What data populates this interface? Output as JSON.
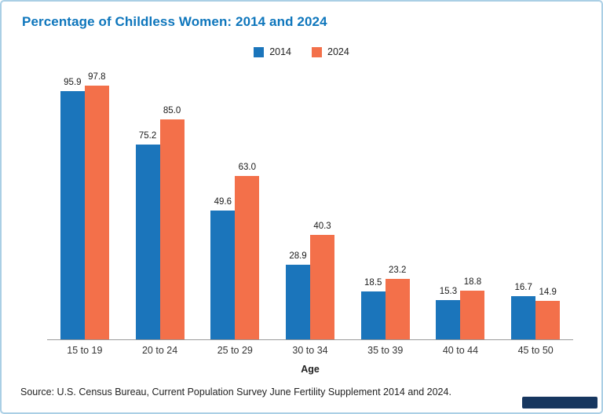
{
  "title": "Percentage of Childless Women: 2014 and 2024",
  "legend": [
    {
      "label": "2014",
      "color": "#1b75bb"
    },
    {
      "label": "2024",
      "color": "#f3704a"
    }
  ],
  "chart_data": {
    "type": "bar",
    "title": "Percentage of Childless Women: 2014 and 2024",
    "categories": [
      "15 to 19",
      "20 to 24",
      "25 to 29",
      "30 to 34",
      "35 to 39",
      "40 to 44",
      "45 to 50"
    ],
    "series": [
      {
        "name": "2014",
        "color": "#1b75bb",
        "values": [
          95.9,
          75.2,
          49.6,
          28.9,
          18.5,
          15.3,
          16.7
        ]
      },
      {
        "name": "2024",
        "color": "#f3704a",
        "values": [
          97.8,
          85.0,
          63.0,
          40.3,
          23.2,
          18.8,
          14.9
        ]
      }
    ],
    "xlabel": "Age",
    "ylabel": "",
    "ylim": [
      0,
      100
    ],
    "grid": false,
    "legend_position": "top",
    "value_labels": true,
    "value_label_decimals": 1
  },
  "xlabel": "Age",
  "source": "Source: U.S. Census Bureau, Current Population Survey June Fertility Supplement 2014 and 2024.",
  "colors": {
    "title": "#0e76bc",
    "frame_border": "#aacfe5",
    "axis_line": "#9a9a9a",
    "logo": "#16365f"
  }
}
